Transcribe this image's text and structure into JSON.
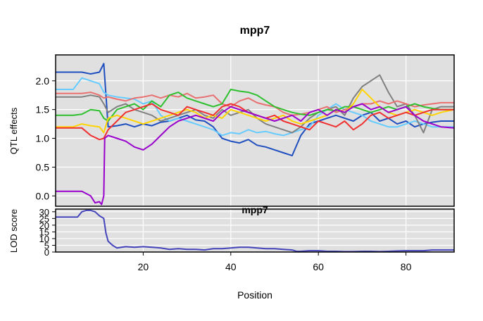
{
  "title": "mpp7",
  "chart_data": [
    {
      "type": "line",
      "title": "mpp7",
      "ylabel": "QTL effects",
      "xlim": [
        0,
        91
      ],
      "ylim": [
        -0.18,
        2.45
      ],
      "xticks": [
        20,
        40,
        60,
        80
      ],
      "yticks": [
        0.0,
        0.5,
        1.0,
        1.5,
        2.0
      ],
      "ytick_labels": [
        "0.0",
        "0.5",
        "1.0",
        "1.5",
        "2.0"
      ],
      "grid": true,
      "background": "#e0e0e0",
      "series": [
        {
          "color": "#1f4fbf",
          "x": [
            0,
            4,
            6,
            8,
            10,
            11,
            12,
            14,
            16,
            18,
            20,
            22,
            24,
            26,
            28,
            30,
            32,
            34,
            36,
            38,
            40,
            42,
            44,
            46,
            48,
            50,
            52,
            54,
            56,
            58,
            60,
            62,
            64,
            66,
            68,
            70,
            72,
            74,
            76,
            78,
            80,
            82,
            84,
            86,
            88,
            91
          ],
          "y": [
            2.15,
            2.15,
            2.15,
            2.12,
            2.15,
            2.3,
            1.2,
            1.22,
            1.25,
            1.2,
            1.25,
            1.22,
            1.28,
            1.3,
            1.35,
            1.4,
            1.32,
            1.3,
            1.2,
            1.0,
            0.95,
            0.92,
            0.98,
            0.88,
            0.85,
            0.8,
            0.75,
            0.7,
            1.05,
            1.25,
            1.3,
            1.35,
            1.4,
            1.35,
            1.3,
            1.4,
            1.45,
            1.3,
            1.35,
            1.25,
            1.3,
            1.2,
            1.25,
            1.28,
            1.3,
            1.3
          ]
        },
        {
          "color": "#66ccff",
          "x": [
            0,
            4,
            6,
            8,
            10,
            11,
            12,
            14,
            16,
            18,
            20,
            22,
            24,
            26,
            28,
            30,
            32,
            34,
            36,
            38,
            40,
            42,
            44,
            46,
            48,
            50,
            52,
            54,
            56,
            58,
            60,
            62,
            64,
            66,
            68,
            70,
            72,
            74,
            76,
            78,
            80,
            82,
            84,
            86,
            88,
            91
          ],
          "y": [
            1.85,
            1.85,
            2.05,
            2.0,
            1.95,
            1.8,
            1.75,
            1.72,
            1.7,
            1.68,
            1.6,
            1.65,
            1.4,
            1.3,
            1.35,
            1.3,
            1.25,
            1.2,
            1.15,
            1.05,
            1.1,
            1.08,
            1.15,
            1.1,
            1.12,
            1.08,
            1.05,
            1.1,
            1.15,
            1.2,
            1.4,
            1.5,
            1.6,
            1.5,
            1.45,
            1.4,
            1.3,
            1.25,
            1.2,
            1.2,
            1.25,
            1.3,
            1.25,
            1.2,
            1.2,
            1.2
          ]
        },
        {
          "color": "#808080",
          "x": [
            0,
            4,
            6,
            8,
            10,
            11,
            12,
            14,
            16,
            18,
            20,
            22,
            24,
            26,
            28,
            30,
            32,
            34,
            36,
            38,
            40,
            42,
            44,
            46,
            48,
            50,
            52,
            54,
            56,
            58,
            60,
            62,
            64,
            66,
            68,
            70,
            72,
            74,
            76,
            78,
            80,
            82,
            84,
            86,
            88,
            91
          ],
          "y": [
            1.72,
            1.72,
            1.72,
            1.75,
            1.72,
            1.6,
            1.45,
            1.55,
            1.6,
            1.5,
            1.45,
            1.4,
            1.3,
            1.35,
            1.4,
            1.45,
            1.5,
            1.4,
            1.35,
            1.5,
            1.4,
            1.45,
            1.5,
            1.35,
            1.25,
            1.2,
            1.15,
            1.1,
            1.2,
            1.35,
            1.45,
            1.5,
            1.55,
            1.4,
            1.7,
            1.9,
            2.0,
            2.1,
            1.8,
            1.55,
            1.6,
            1.4,
            1.1,
            1.5,
            1.55,
            1.55
          ]
        },
        {
          "color": "#e87070",
          "x": [
            0,
            4,
            6,
            8,
            10,
            11,
            12,
            14,
            16,
            18,
            20,
            22,
            24,
            26,
            28,
            30,
            32,
            34,
            36,
            38,
            40,
            42,
            44,
            46,
            48,
            50,
            52,
            54,
            56,
            58,
            60,
            62,
            64,
            66,
            68,
            70,
            72,
            74,
            76,
            78,
            80,
            82,
            84,
            86,
            88,
            91
          ],
          "y": [
            1.78,
            1.78,
            1.78,
            1.8,
            1.75,
            1.7,
            1.72,
            1.68,
            1.65,
            1.7,
            1.72,
            1.75,
            1.7,
            1.75,
            1.72,
            1.78,
            1.7,
            1.72,
            1.75,
            1.6,
            1.55,
            1.65,
            1.7,
            1.62,
            1.58,
            1.55,
            1.45,
            1.4,
            1.42,
            1.45,
            1.5,
            1.55,
            1.45,
            1.5,
            1.55,
            1.6,
            1.6,
            1.65,
            1.6,
            1.65,
            1.6,
            1.55,
            1.58,
            1.6,
            1.62,
            1.62
          ]
        },
        {
          "color": "#2ec02e",
          "x": [
            0,
            4,
            6,
            8,
            10,
            11,
            12,
            14,
            16,
            18,
            20,
            22,
            24,
            26,
            28,
            30,
            32,
            34,
            36,
            38,
            40,
            42,
            44,
            46,
            48,
            50,
            52,
            54,
            56,
            58,
            60,
            62,
            64,
            66,
            68,
            70,
            72,
            74,
            76,
            78,
            80,
            82,
            84,
            86,
            88,
            91
          ],
          "y": [
            1.4,
            1.4,
            1.42,
            1.5,
            1.48,
            1.35,
            1.3,
            1.5,
            1.55,
            1.6,
            1.5,
            1.65,
            1.55,
            1.75,
            1.8,
            1.7,
            1.65,
            1.6,
            1.55,
            1.6,
            1.85,
            1.82,
            1.8,
            1.75,
            1.65,
            1.55,
            1.5,
            1.45,
            1.42,
            1.4,
            1.45,
            1.5,
            1.48,
            1.55,
            1.55,
            1.5,
            1.45,
            1.5,
            1.55,
            1.5,
            1.55,
            1.6,
            1.55,
            1.52,
            1.5,
            1.5
          ]
        },
        {
          "color": "#ffd400",
          "x": [
            0,
            4,
            6,
            8,
            10,
            11,
            12,
            14,
            16,
            18,
            20,
            22,
            24,
            26,
            28,
            30,
            32,
            34,
            36,
            38,
            40,
            42,
            44,
            46,
            48,
            50,
            52,
            54,
            56,
            58,
            60,
            62,
            64,
            66,
            68,
            70,
            72,
            74,
            76,
            78,
            80,
            82,
            84,
            86,
            88,
            91
          ],
          "y": [
            1.2,
            1.2,
            1.25,
            1.22,
            1.2,
            1.1,
            1.35,
            1.4,
            1.35,
            1.3,
            1.25,
            1.3,
            1.35,
            1.4,
            1.45,
            1.5,
            1.45,
            1.35,
            1.4,
            1.35,
            1.5,
            1.45,
            1.4,
            1.35,
            1.3,
            1.35,
            1.4,
            1.3,
            1.25,
            1.3,
            1.35,
            1.4,
            1.5,
            1.45,
            1.6,
            1.85,
            1.7,
            1.55,
            1.45,
            1.4,
            1.45,
            1.5,
            1.45,
            1.4,
            1.45,
            1.5
          ]
        },
        {
          "color": "#f03030",
          "x": [
            0,
            4,
            6,
            8,
            10,
            11,
            12,
            14,
            16,
            18,
            20,
            22,
            24,
            26,
            28,
            30,
            32,
            34,
            36,
            38,
            40,
            42,
            44,
            46,
            48,
            50,
            52,
            54,
            56,
            58,
            60,
            62,
            64,
            66,
            68,
            70,
            72,
            74,
            76,
            78,
            80,
            82,
            84,
            86,
            88,
            91
          ],
          "y": [
            1.18,
            1.18,
            1.18,
            1.05,
            0.98,
            1.0,
            1.15,
            1.3,
            1.45,
            1.5,
            1.55,
            1.6,
            1.5,
            1.45,
            1.4,
            1.55,
            1.5,
            1.45,
            1.4,
            1.55,
            1.6,
            1.55,
            1.45,
            1.4,
            1.35,
            1.4,
            1.3,
            1.25,
            1.2,
            1.15,
            1.3,
            1.25,
            1.2,
            1.3,
            1.15,
            1.25,
            1.4,
            1.45,
            1.35,
            1.4,
            1.45,
            1.4,
            1.45,
            1.5,
            1.5,
            1.5
          ]
        },
        {
          "color": "#9900cc",
          "x": [
            0,
            4,
            6,
            8,
            9,
            10,
            10.5,
            11,
            11.2,
            12,
            14,
            16,
            18,
            20,
            22,
            24,
            26,
            28,
            30,
            32,
            34,
            36,
            38,
            40,
            42,
            44,
            46,
            48,
            50,
            52,
            54,
            56,
            58,
            60,
            62,
            64,
            66,
            68,
            70,
            72,
            74,
            76,
            78,
            80,
            82,
            84,
            86,
            88,
            91
          ],
          "y": [
            0.08,
            0.08,
            0.08,
            0.0,
            -0.12,
            -0.1,
            -0.15,
            0.0,
            1.0,
            1.05,
            1.0,
            0.95,
            0.85,
            0.8,
            0.9,
            1.05,
            1.2,
            1.3,
            1.35,
            1.4,
            1.35,
            1.3,
            1.45,
            1.55,
            1.5,
            1.45,
            1.4,
            1.35,
            1.3,
            1.35,
            1.4,
            1.3,
            1.45,
            1.5,
            1.4,
            1.5,
            1.45,
            1.55,
            1.6,
            1.5,
            1.55,
            1.45,
            1.5,
            1.55,
            1.4,
            1.3,
            1.25,
            1.2,
            1.18
          ]
        }
      ]
    },
    {
      "type": "line",
      "title": "mpp7",
      "xlabel": "Position",
      "ylabel": "LOD score",
      "xlim": [
        0,
        91
      ],
      "ylim": [
        0,
        32
      ],
      "xticks": [
        20,
        40,
        60,
        80
      ],
      "xtick_labels": [
        "20",
        "40",
        "60",
        "80"
      ],
      "yticks": [
        0,
        5,
        10,
        15,
        20,
        25,
        30
      ],
      "ytick_labels": [
        "0",
        "5",
        "10",
        "15",
        "20",
        "25",
        "30"
      ],
      "grid": true,
      "background": "#e0e0e0",
      "series": [
        {
          "color": "#4444bb",
          "x": [
            0,
            4,
            5,
            6,
            7,
            8,
            9,
            10,
            11,
            11.5,
            12,
            13,
            14,
            16,
            18,
            20,
            22,
            24,
            26,
            28,
            30,
            32,
            34,
            36,
            38,
            40,
            42,
            44,
            46,
            48,
            50,
            52,
            54,
            55,
            56,
            58,
            60,
            62,
            64,
            66,
            68,
            70,
            72,
            74,
            76,
            78,
            80,
            82,
            84,
            86,
            88,
            91
          ],
          "y": [
            26,
            26,
            26,
            30,
            31,
            31,
            30,
            27,
            25,
            14,
            8,
            5,
            3,
            4,
            3.5,
            4,
            3.5,
            3,
            2,
            2.5,
            2,
            2,
            1.5,
            2.5,
            2.5,
            3,
            3.5,
            3.5,
            3,
            2.5,
            2.5,
            2,
            1.5,
            0.5,
            0.5,
            1,
            1,
            0.5,
            0.5,
            0.3,
            0.3,
            0.5,
            0.5,
            0.3,
            0.5,
            0.8,
            1,
            1,
            1,
            1.5,
            1.5,
            1.5
          ]
        }
      ]
    }
  ]
}
